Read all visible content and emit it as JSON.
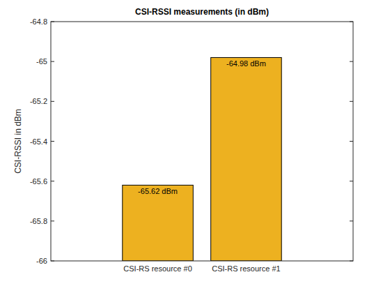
{
  "chart_data": {
    "type": "bar",
    "title": "CSI-RSSI measurements (in dBm)",
    "y_label": "CSI-RSSI in dBm",
    "categories": [
      "CSI-RS resource #0",
      "CSI-RS resource #1"
    ],
    "values": [
      -65.62,
      -64.98
    ],
    "value_labels": [
      "-65.62 dBm",
      "-64.98 dBm"
    ],
    "color": "#edb120",
    "ylim": [
      -66,
      -64.8
    ],
    "yticks": [
      -66,
      -65.8,
      -65.6,
      -65.4,
      -65.2,
      -65,
      -64.8
    ],
    "grid": false,
    "data_labels": true
  }
}
